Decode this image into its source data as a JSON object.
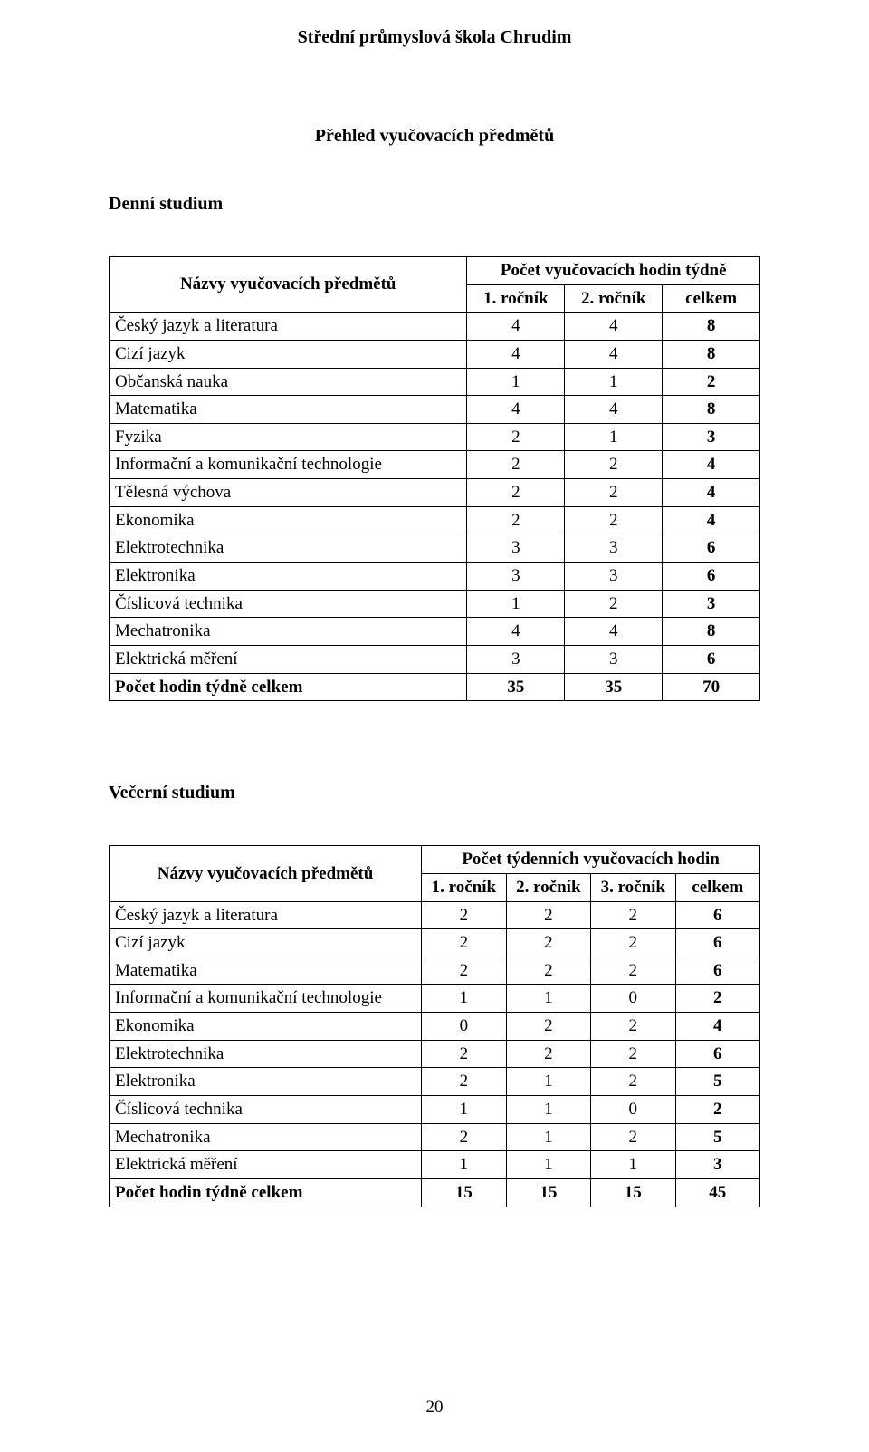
{
  "school_header": "Střední průmyslová škola Chrudim",
  "doc_title": "Přehled vyučovacích předmětů",
  "page_number": "20",
  "colors": {
    "background": "#ffffff",
    "text": "#000000",
    "border": "#000000"
  },
  "fonts": {
    "family": "Times New Roman",
    "body_size_pt": 14,
    "header_size_pt": 15
  },
  "table_a": {
    "section_heading": "Denní studium",
    "row_header_label": "Názvy vyučovacích předmětů",
    "super_header": "Počet vyučovacích hodin týdně",
    "columns": [
      "1. ročník",
      "2. ročník",
      "celkem"
    ],
    "bold_columns": [
      false,
      false,
      true
    ],
    "rows": [
      {
        "name": "Český jazyk a literatura",
        "vals": [
          "4",
          "4",
          "8"
        ]
      },
      {
        "name": "Cizí jazyk",
        "vals": [
          "4",
          "4",
          "8"
        ]
      },
      {
        "name": "Občanská nauka",
        "vals": [
          "1",
          "1",
          "2"
        ]
      },
      {
        "name": "Matematika",
        "vals": [
          "4",
          "4",
          "8"
        ]
      },
      {
        "name": "Fyzika",
        "vals": [
          "2",
          "1",
          "3"
        ]
      },
      {
        "name": "Informační a komunikační technologie",
        "vals": [
          "2",
          "2",
          "4"
        ]
      },
      {
        "name": "Tělesná výchova",
        "vals": [
          "2",
          "2",
          "4"
        ]
      },
      {
        "name": "Ekonomika",
        "vals": [
          "2",
          "2",
          "4"
        ]
      },
      {
        "name": "Elektrotechnika",
        "vals": [
          "3",
          "3",
          "6"
        ]
      },
      {
        "name": "Elektronika",
        "vals": [
          "3",
          "3",
          "6"
        ]
      },
      {
        "name": "Číslicová technika",
        "vals": [
          "1",
          "2",
          "3"
        ]
      },
      {
        "name": "Mechatronika",
        "vals": [
          "4",
          "4",
          "8"
        ]
      },
      {
        "name": "Elektrická měření",
        "vals": [
          "3",
          "3",
          "6"
        ]
      }
    ],
    "total_row": {
      "name": "Počet hodin týdně celkem",
      "vals": [
        "35",
        "35",
        "70"
      ]
    }
  },
  "table_b": {
    "section_heading": "Večerní studium",
    "row_header_label": "Názvy vyučovacích předmětů",
    "super_header": "Počet týdenních vyučovacích hodin",
    "columns": [
      "1. ročník",
      "2. ročník",
      "3. ročník",
      "celkem"
    ],
    "bold_columns": [
      false,
      false,
      false,
      true
    ],
    "rows": [
      {
        "name": "Český jazyk a literatura",
        "vals": [
          "2",
          "2",
          "2",
          "6"
        ]
      },
      {
        "name": "Cizí jazyk",
        "vals": [
          "2",
          "2",
          "2",
          "6"
        ]
      },
      {
        "name": "Matematika",
        "vals": [
          "2",
          "2",
          "2",
          "6"
        ]
      },
      {
        "name": "Informační a komunikační technologie",
        "vals": [
          "1",
          "1",
          "0",
          "2"
        ]
      },
      {
        "name": "Ekonomika",
        "vals": [
          "0",
          "2",
          "2",
          "4"
        ]
      },
      {
        "name": "Elektrotechnika",
        "vals": [
          "2",
          "2",
          "2",
          "6"
        ]
      },
      {
        "name": "Elektronika",
        "vals": [
          "2",
          "1",
          "2",
          "5"
        ]
      },
      {
        "name": "Číslicová technika",
        "vals": [
          "1",
          "1",
          "0",
          "2"
        ]
      },
      {
        "name": "Mechatronika",
        "vals": [
          "2",
          "1",
          "2",
          "5"
        ]
      },
      {
        "name": "Elektrická měření",
        "vals": [
          "1",
          "1",
          "1",
          "3"
        ]
      }
    ],
    "total_row": {
      "name": "Počet hodin týdně celkem",
      "vals": [
        "15",
        "15",
        "15",
        "45"
      ]
    }
  }
}
